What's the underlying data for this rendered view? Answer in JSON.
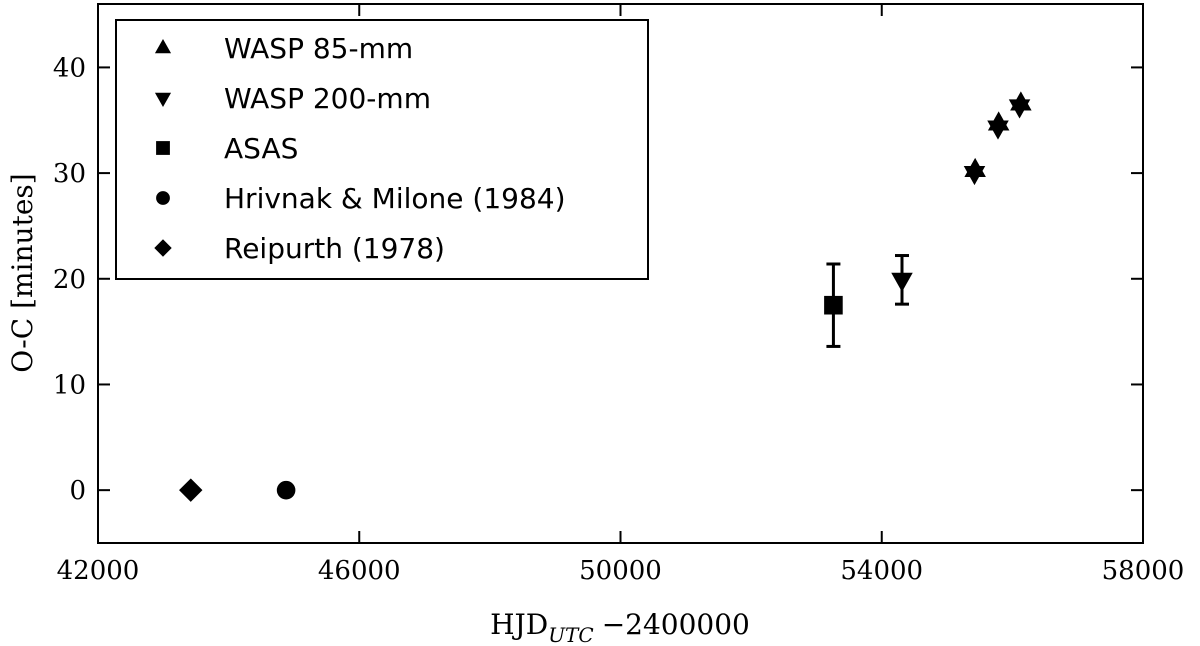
{
  "chart_data": {
    "type": "scatter",
    "xlabel": "HJD",
    "xlabel_subscript": "UTC",
    "xlabel_suffix": "−2400000",
    "ylabel": "O-C [minutes]",
    "xlim": [
      42000,
      58000
    ],
    "ylim": [
      -5,
      46
    ],
    "x_ticks": [
      42000,
      46000,
      50000,
      54000,
      58000
    ],
    "y_ticks": [
      0,
      10,
      20,
      30,
      40
    ],
    "x_tick_labels": [
      "42000",
      "46000",
      "50000",
      "54000",
      "58000"
    ],
    "y_tick_labels": [
      "0",
      "10",
      "20",
      "30",
      "40"
    ],
    "legend_position": "top-left",
    "series": [
      {
        "name": "WASP 85-mm",
        "marker": "triangle-up",
        "points": [
          {
            "x": 55430,
            "y": 30.3
          },
          {
            "x": 55790,
            "y": 34.7
          },
          {
            "x": 56130,
            "y": 36.6
          }
        ]
      },
      {
        "name": "WASP 200-mm",
        "marker": "triangle-down",
        "points": [
          {
            "x": 54310,
            "y": 19.9,
            "err": 2.3
          },
          {
            "x": 55420,
            "y": 30.0
          },
          {
            "x": 55780,
            "y": 34.3
          },
          {
            "x": 56110,
            "y": 36.3
          }
        ]
      },
      {
        "name": "ASAS",
        "marker": "square",
        "points": [
          {
            "x": 53260,
            "y": 17.5,
            "err": 3.9
          }
        ]
      },
      {
        "name": "Hrivnak & Milone (1984)",
        "marker": "circle",
        "points": [
          {
            "x": 44880,
            "y": 0.0
          }
        ]
      },
      {
        "name": "Reipurth (1978)",
        "marker": "diamond",
        "points": [
          {
            "x": 43420,
            "y": 0.0
          }
        ]
      }
    ]
  }
}
